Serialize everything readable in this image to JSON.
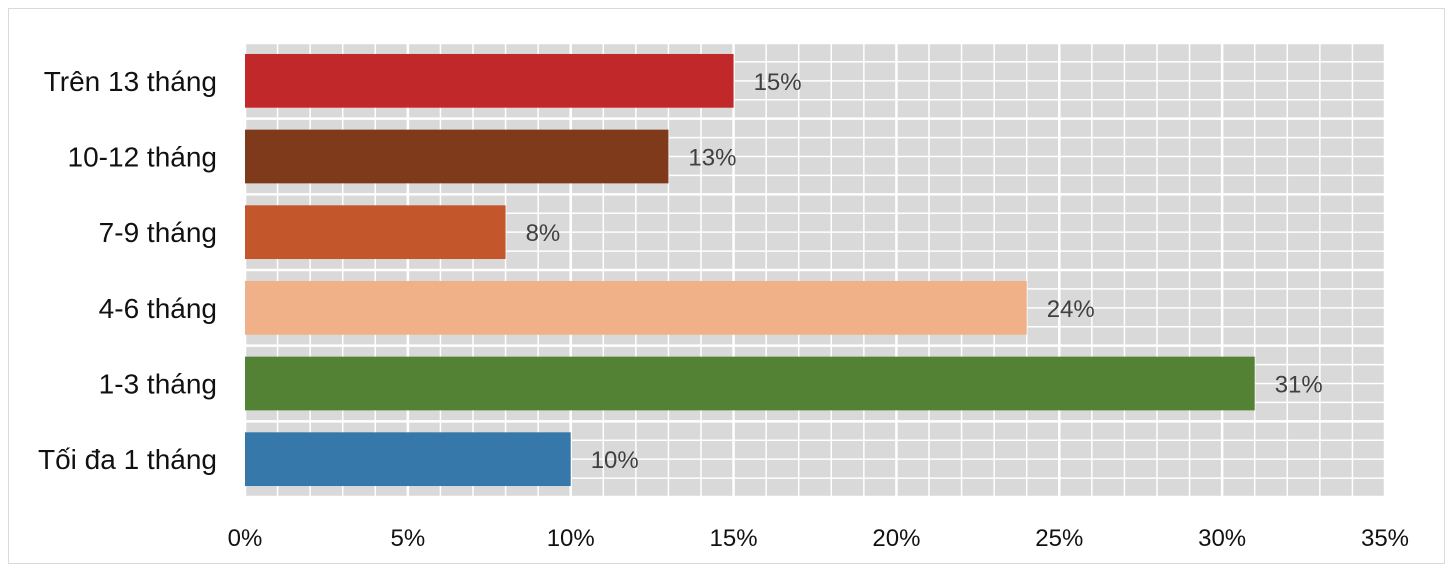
{
  "chart_data": {
    "type": "bar",
    "orientation": "horizontal",
    "categories": [
      "Trên 13 tháng",
      "10-12 tháng",
      "7-9 tháng",
      "4-6 tháng",
      "1-3 tháng",
      "Tối đa 1 tháng"
    ],
    "values": [
      15,
      13,
      8,
      24,
      31,
      10
    ],
    "data_labels": [
      "15%",
      "13%",
      "8%",
      "24%",
      "31%",
      "10%"
    ],
    "colors": [
      "#c0282a",
      "#7f3a1b",
      "#c4562b",
      "#f0b088",
      "#548235",
      "#3778aa"
    ],
    "xlim": [
      0,
      35
    ],
    "x_ticks": [
      0,
      5,
      10,
      15,
      20,
      25,
      30,
      35
    ],
    "x_tick_labels": [
      "0%",
      "5%",
      "10%",
      "15%",
      "20%",
      "25%",
      "30%",
      "35%"
    ],
    "grid": true,
    "plot_background": "#d9d9d9",
    "grid_color": "#ffffff",
    "title": "",
    "xlabel": "",
    "ylabel": ""
  }
}
